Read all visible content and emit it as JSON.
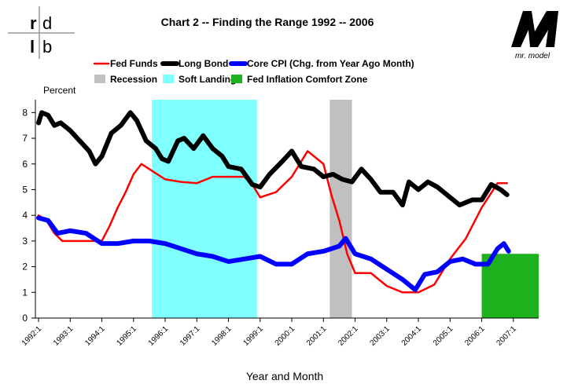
{
  "logo_left": [
    "r",
    "d",
    "l",
    "b"
  ],
  "logo_right": "mr. model",
  "chart_data": {
    "type": "line",
    "title": "Chart 2 -- Finding the Range 1992 -- 2006",
    "y_axis_label": "Percent",
    "x_axis_label": "Year and Month",
    "xlim": [
      1991.9,
      2007.8
    ],
    "ylim": [
      0,
      8.5
    ],
    "yticks": [
      0,
      1,
      2,
      3,
      4,
      5,
      6,
      7,
      8
    ],
    "xticks": [
      {
        "value": 1992,
        "label": "1992:1"
      },
      {
        "value": 1993,
        "label": "1993:1"
      },
      {
        "value": 1994,
        "label": "1994:1"
      },
      {
        "value": 1995,
        "label": "1995:1"
      },
      {
        "value": 1996,
        "label": "1996:1"
      },
      {
        "value": 1997,
        "label": "1997:1"
      },
      {
        "value": 1998,
        "label": "1998:1"
      },
      {
        "value": 1999,
        "label": "1999:1"
      },
      {
        "value": 2000,
        "label": "2000:1"
      },
      {
        "value": 2001,
        "label": "2001:1"
      },
      {
        "value": 2002,
        "label": "2002:1"
      },
      {
        "value": 2003,
        "label": "2003:1"
      },
      {
        "value": 2004,
        "label": "2004:1"
      },
      {
        "value": 2005,
        "label": "2005:1"
      },
      {
        "value": 2006,
        "label": "2006:1"
      },
      {
        "value": 2007,
        "label": "2007:1"
      }
    ],
    "regions": [
      {
        "name": "Recession",
        "color": "#c0c0c0",
        "x": [
          2001.2,
          2001.9
        ]
      },
      {
        "name": "Soft Landing",
        "color": "#80ffff",
        "x": [
          1995.58,
          1998.9
        ]
      },
      {
        "name": "Fed Inflation Comfort Zone",
        "color": "#1db11d",
        "x": [
          2006.0,
          2007.8
        ],
        "y": [
          0,
          2.5
        ]
      }
    ],
    "series": [
      {
        "name": "Fed Funds",
        "color": "#ff0000",
        "width": 2.5,
        "x": [
          1992.0,
          1992.25,
          1992.5,
          1992.75,
          1993.0,
          1993.5,
          1994.0,
          1994.25,
          1994.5,
          1994.75,
          1995.0,
          1995.25,
          1995.5,
          1996.0,
          1996.5,
          1997.0,
          1997.5,
          1998.0,
          1998.5,
          1998.75,
          1999.0,
          1999.5,
          2000.0,
          2000.5,
          2001.0,
          2001.25,
          2001.5,
          2001.75,
          2002.0,
          2002.5,
          2003.0,
          2003.5,
          2004.0,
          2004.5,
          2005.0,
          2005.5,
          2006.0,
          2006.5,
          2006.8
        ],
        "values": [
          4.0,
          3.8,
          3.3,
          3.0,
          3.0,
          3.0,
          3.0,
          3.6,
          4.3,
          4.9,
          5.6,
          6.0,
          5.8,
          5.4,
          5.3,
          5.25,
          5.5,
          5.5,
          5.5,
          5.2,
          4.7,
          4.9,
          5.5,
          6.5,
          6.0,
          4.8,
          3.8,
          2.5,
          1.75,
          1.75,
          1.25,
          1.0,
          1.0,
          1.3,
          2.3,
          3.1,
          4.3,
          5.25,
          5.25
        ]
      },
      {
        "name": "Long Bond",
        "color": "#000000",
        "width": 6,
        "x": [
          1992.0,
          1992.1,
          1992.3,
          1992.5,
          1992.7,
          1993.0,
          1993.3,
          1993.6,
          1993.8,
          1994.0,
          1994.3,
          1994.6,
          1994.9,
          1995.1,
          1995.4,
          1995.7,
          1995.9,
          1996.1,
          1996.4,
          1996.6,
          1996.9,
          1997.2,
          1997.5,
          1997.8,
          1998.0,
          1998.4,
          1998.75,
          1999.0,
          1999.3,
          1999.7,
          2000.0,
          2000.3,
          2000.7,
          2001.0,
          2001.3,
          2001.6,
          2001.9,
          2002.2,
          2002.5,
          2002.8,
          2003.2,
          2003.5,
          2003.7,
          2004.0,
          2004.3,
          2004.6,
          2005.0,
          2005.3,
          2005.7,
          2006.0,
          2006.3,
          2006.6,
          2006.8
        ],
        "values": [
          7.6,
          8.0,
          7.9,
          7.5,
          7.6,
          7.3,
          6.9,
          6.5,
          6.0,
          6.3,
          7.2,
          7.5,
          8.0,
          7.7,
          6.9,
          6.6,
          6.2,
          6.1,
          6.9,
          7.0,
          6.6,
          7.1,
          6.6,
          6.3,
          5.9,
          5.8,
          5.2,
          5.1,
          5.6,
          6.1,
          6.5,
          5.9,
          5.8,
          5.5,
          5.6,
          5.4,
          5.3,
          5.8,
          5.4,
          4.9,
          4.9,
          4.4,
          5.3,
          5.0,
          5.3,
          5.1,
          4.7,
          4.4,
          4.6,
          4.6,
          5.2,
          5.0,
          4.8
        ]
      },
      {
        "name": "Core CPI (Chg. from Year Ago Month)",
        "color": "#0000ff",
        "width": 6,
        "x": [
          1992.0,
          1992.3,
          1992.6,
          1993.0,
          1993.5,
          1994.0,
          1994.5,
          1995.0,
          1995.5,
          1996.0,
          1996.5,
          1997.0,
          1997.5,
          1998.0,
          1998.5,
          1999.0,
          1999.5,
          2000.0,
          2000.5,
          2001.0,
          2001.5,
          2001.7,
          2002.0,
          2002.5,
          2003.0,
          2003.5,
          2003.9,
          2004.2,
          2004.6,
          2005.0,
          2005.4,
          2005.8,
          2006.2,
          2006.5,
          2006.7,
          2006.85
        ],
        "values": [
          3.9,
          3.8,
          3.3,
          3.4,
          3.3,
          2.9,
          2.9,
          3.0,
          3.0,
          2.9,
          2.7,
          2.5,
          2.4,
          2.2,
          2.3,
          2.4,
          2.1,
          2.1,
          2.5,
          2.6,
          2.8,
          3.1,
          2.5,
          2.3,
          1.9,
          1.5,
          1.1,
          1.7,
          1.8,
          2.2,
          2.3,
          2.1,
          2.1,
          2.7,
          2.9,
          2.6
        ]
      }
    ]
  }
}
